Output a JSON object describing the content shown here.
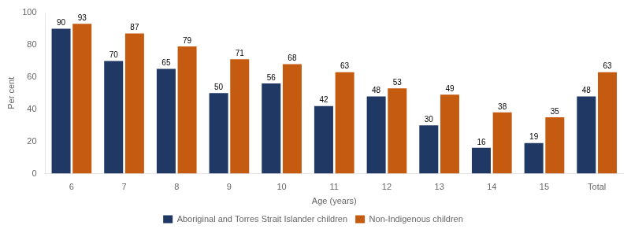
{
  "chart_data": {
    "type": "bar",
    "xlabel": "Age (years)",
    "ylabel": "Per cent",
    "categories": [
      "6",
      "7",
      "8",
      "9",
      "10",
      "11",
      "12",
      "13",
      "14",
      "15",
      "Total"
    ],
    "series": [
      {
        "name": "Aboriginal and Torres Strait Islander children",
        "color": "#1F3864",
        "values": [
          90,
          70,
          65,
          50,
          56,
          42,
          48,
          30,
          16,
          19,
          48
        ]
      },
      {
        "name": "Non-Indigenous children",
        "color": "#C55A11",
        "values": [
          93,
          87,
          79,
          71,
          68,
          63,
          53,
          49,
          38,
          35,
          63
        ]
      }
    ],
    "ylim": [
      0,
      100
    ],
    "yticks": [
      0,
      20,
      40,
      60,
      80,
      100
    ],
    "grid": false,
    "legend": "bottom",
    "data_labels": true
  }
}
